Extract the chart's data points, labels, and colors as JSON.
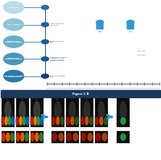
{
  "bg_color": "#ffffff",
  "timeline_events": [
    {
      "label": "Diagnosis",
      "left_color": "#b8dde8",
      "right_color": "#2e6da4",
      "text": ""
    },
    {
      "label": "Prior Surgery",
      "left_color": "#8fc4d8",
      "right_color": "#2060a0",
      "text": "Imatinib 400mg\n(IM) daily"
    },
    {
      "label": "Progression\nImatinib 400mg",
      "left_color": "#6aaec8",
      "right_color": "#1d5c98",
      "text": "Imatinib 800mg\ndaily"
    },
    {
      "label": "Progression\nImatinib 800mg",
      "left_color": "#4a96b8",
      "right_color": "#1a5490",
      "text": "Regorafenib 160mg\n3 weeks on 1 off\nSunitinib 50mg\n4 weeks on 2 off"
    },
    {
      "label": "Progression Sunitinib\n& Regorafenib",
      "left_color": "#2a7aa8",
      "right_color": "#153d70",
      "text": "Ripretinib 150mg\ndaily"
    }
  ],
  "line_color": "#2060a0",
  "text_color": "#1a3a5c",
  "arrow_color": "#3399cc",
  "header_color": "#1a3a5c",
  "scan_bg": "#0a0a0a",
  "scan_header_text": "Figure 1 B",
  "pet_icon_color": "#3399cc",
  "ruler_color": "#555555"
}
